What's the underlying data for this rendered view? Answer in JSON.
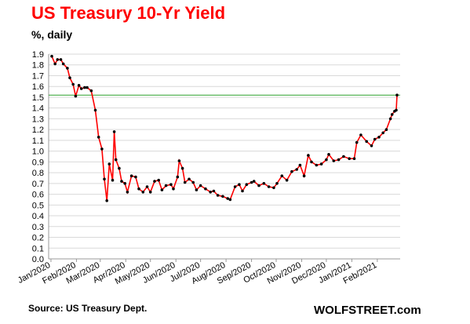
{
  "title": "US Treasury  10-Yr Yield",
  "ylabel": "%, daily",
  "source": "Source: US Treasury Dept.",
  "brand": "WOLFSTREET.com",
  "colors": {
    "title": "#ff0000",
    "line": "#ff0000",
    "markers": "#000000",
    "reference": "#2ca02c",
    "grid": "#d9d9d9"
  },
  "chart_data": {
    "type": "line",
    "title": "US Treasury  10-Yr Yield",
    "ylabel": "%, daily",
    "ylim": [
      0,
      1.9
    ],
    "yticks": [
      "0.0",
      "0.1",
      "0.2",
      "0.3",
      "0.4",
      "0.5",
      "0.6",
      "0.7",
      "0.8",
      "0.9",
      "1.0",
      "1.1",
      "1.2",
      "1.3",
      "1.4",
      "1.5",
      "1.6",
      "1.7",
      "1.8",
      "1.9"
    ],
    "xticks": [
      "Jan/2020",
      "Feb/2020",
      "Mar/2020",
      "Apr/2020",
      "May/2020",
      "Jun/2020",
      "Jul/2020",
      "Aug/2020",
      "Sep/2020",
      "Oct/2020",
      "Nov/2020",
      "Dec/2020",
      "Jan/2021",
      "Feb/2021"
    ],
    "grid": true,
    "reference_line": 1.52,
    "series": [
      {
        "x": [
          "2020-01-02",
          "2020-01-06",
          "2020-01-09",
          "2020-01-13",
          "2020-01-16",
          "2020-01-21",
          "2020-01-24",
          "2020-01-28",
          "2020-01-31",
          "2020-02-04",
          "2020-02-07",
          "2020-02-11",
          "2020-02-14",
          "2020-02-19",
          "2020-02-24",
          "2020-02-28",
          "2020-03-03",
          "2020-03-06",
          "2020-03-09",
          "2020-03-12",
          "2020-03-16",
          "2020-03-18",
          "2020-03-20",
          "2020-03-24",
          "2020-03-27",
          "2020-03-31",
          "2020-04-03",
          "2020-04-08",
          "2020-04-13",
          "2020-04-17",
          "2020-04-22",
          "2020-04-27",
          "2020-05-01",
          "2020-05-06",
          "2020-05-11",
          "2020-05-15",
          "2020-05-20",
          "2020-05-26",
          "2020-05-29",
          "2020-06-03",
          "2020-06-05",
          "2020-06-09",
          "2020-06-12",
          "2020-06-17",
          "2020-06-22",
          "2020-06-26",
          "2020-07-01",
          "2020-07-07",
          "2020-07-13",
          "2020-07-17",
          "2020-07-22",
          "2020-07-28",
          "2020-08-03",
          "2020-08-06",
          "2020-08-12",
          "2020-08-17",
          "2020-08-21",
          "2020-08-26",
          "2020-09-01",
          "2020-09-04",
          "2020-09-10",
          "2020-09-16",
          "2020-09-22",
          "2020-09-28",
          "2020-10-02",
          "2020-10-08",
          "2020-10-14",
          "2020-10-20",
          "2020-10-26",
          "2020-10-30",
          "2020-11-04",
          "2020-11-09",
          "2020-11-13",
          "2020-11-19",
          "2020-11-25",
          "2020-12-01",
          "2020-12-04",
          "2020-12-10",
          "2020-12-16",
          "2020-12-22",
          "2020-12-29",
          "2021-01-04",
          "2021-01-07",
          "2021-01-12",
          "2021-01-19",
          "2021-01-25",
          "2021-01-29",
          "2021-02-03",
          "2021-02-08",
          "2021-02-12",
          "2021-02-17",
          "2021-02-19",
          "2021-02-22",
          "2021-02-24",
          "2021-02-25"
        ],
        "values": [
          1.88,
          1.81,
          1.85,
          1.85,
          1.81,
          1.77,
          1.68,
          1.62,
          1.51,
          1.61,
          1.58,
          1.59,
          1.59,
          1.56,
          1.38,
          1.13,
          1.02,
          0.74,
          0.54,
          0.88,
          0.73,
          1.18,
          0.92,
          0.84,
          0.72,
          0.7,
          0.62,
          0.77,
          0.76,
          0.65,
          0.62,
          0.67,
          0.62,
          0.72,
          0.73,
          0.64,
          0.68,
          0.69,
          0.65,
          0.76,
          0.91,
          0.84,
          0.71,
          0.74,
          0.71,
          0.64,
          0.68,
          0.65,
          0.62,
          0.63,
          0.59,
          0.58,
          0.56,
          0.55,
          0.67,
          0.69,
          0.63,
          0.69,
          0.71,
          0.72,
          0.68,
          0.7,
          0.67,
          0.66,
          0.7,
          0.77,
          0.73,
          0.81,
          0.83,
          0.87,
          0.77,
          0.96,
          0.9,
          0.87,
          0.88,
          0.92,
          0.97,
          0.91,
          0.92,
          0.95,
          0.93,
          0.93,
          1.08,
          1.15,
          1.09,
          1.05,
          1.11,
          1.13,
          1.17,
          1.2,
          1.3,
          1.34,
          1.37,
          1.38,
          1.52
        ]
      }
    ]
  }
}
